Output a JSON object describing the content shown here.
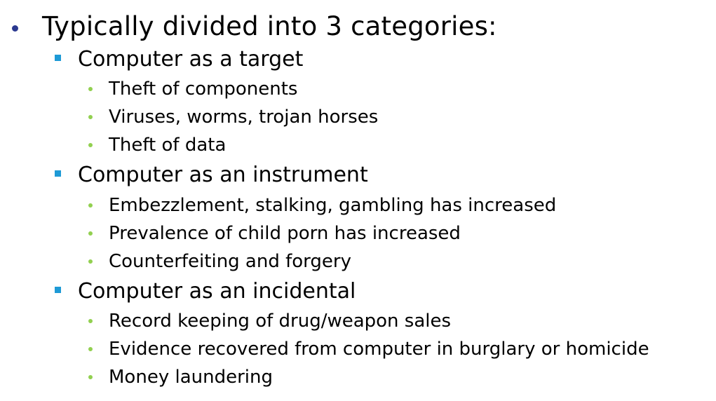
{
  "colors": {
    "level1_bullet": "#2b3990",
    "level2_bullet": "#1e9ad6",
    "level3_bullet": "#92d050",
    "text": "#000000"
  },
  "heading": {
    "text": "Typically divided into 3 categories:"
  },
  "categories": [
    {
      "title": "Computer as a target",
      "items": [
        "Theft of components",
        "Viruses, worms, trojan horses",
        "Theft of data"
      ]
    },
    {
      "title": "Computer as an instrument",
      "items": [
        "Embezzlement, stalking, gambling has increased",
        "Prevalence of child porn has increased",
        "Counterfeiting and forgery"
      ]
    },
    {
      "title": "Computer as an incidental",
      "items": [
        "Record keeping of drug/weapon sales",
        "Evidence recovered from computer in burglary or homicide",
        "Money laundering"
      ]
    }
  ]
}
